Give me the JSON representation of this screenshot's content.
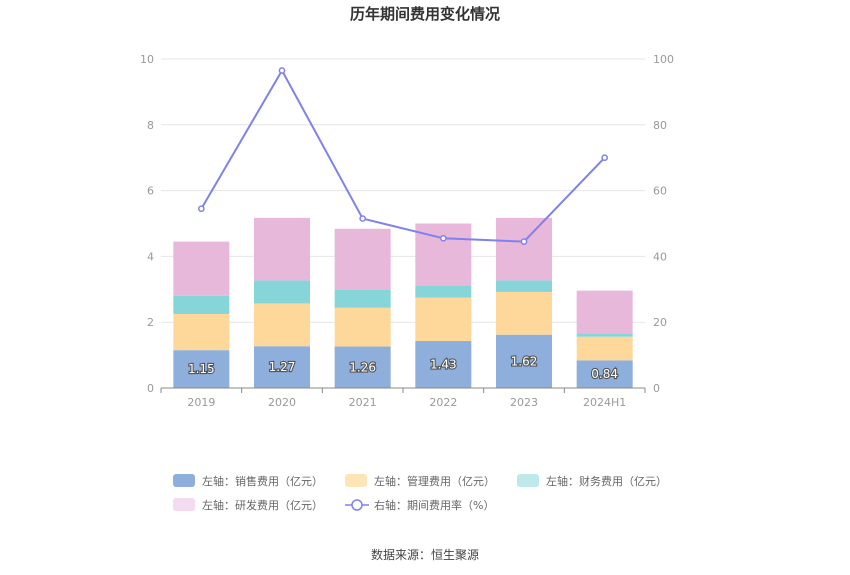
{
  "chart_data": {
    "type": "bar",
    "stacked": true,
    "title": "历年期间费用变化情况",
    "categories": [
      "2019",
      "2020",
      "2021",
      "2022",
      "2023",
      "2024H1"
    ],
    "left_axis": {
      "ylim": [
        0,
        10
      ],
      "ticks": [
        0,
        2,
        4,
        6,
        8,
        10
      ]
    },
    "right_axis": {
      "ylim": [
        0,
        100
      ],
      "ticks": [
        0,
        20,
        40,
        60,
        80,
        100
      ]
    },
    "grid": true,
    "legend_position": "bottom",
    "series": [
      {
        "name": "左轴：销售费用（亿元）",
        "axis": "left",
        "type": "bar",
        "color": "#8eaedc",
        "values": [
          1.15,
          1.27,
          1.26,
          1.43,
          1.62,
          0.84
        ],
        "labels": [
          "1.15",
          "1.27",
          "1.26",
          "1.43",
          "1.62",
          "0.84"
        ]
      },
      {
        "name": "左轴：管理费用（亿元）",
        "axis": "left",
        "type": "bar",
        "color": "#fdd89a",
        "values": [
          1.1,
          1.3,
          1.18,
          1.32,
          1.3,
          0.72
        ]
      },
      {
        "name": "左轴：财务费用（亿元）",
        "axis": "left",
        "type": "bar",
        "color": "#86d5d9",
        "values": [
          0.55,
          0.7,
          0.55,
          0.35,
          0.35,
          0.1
        ]
      },
      {
        "name": "左轴：研发费用（亿元）",
        "axis": "left",
        "type": "bar",
        "color": "#e8b8da",
        "values": [
          1.65,
          1.9,
          1.85,
          1.9,
          1.9,
          1.3
        ]
      },
      {
        "name": "右轴：期间费用率（%）",
        "axis": "right",
        "type": "line",
        "color": "#8080ee",
        "values": [
          54.5,
          96.5,
          51.5,
          45.5,
          44.5,
          70.0
        ]
      }
    ],
    "source": "数据来源：恒生聚源"
  }
}
